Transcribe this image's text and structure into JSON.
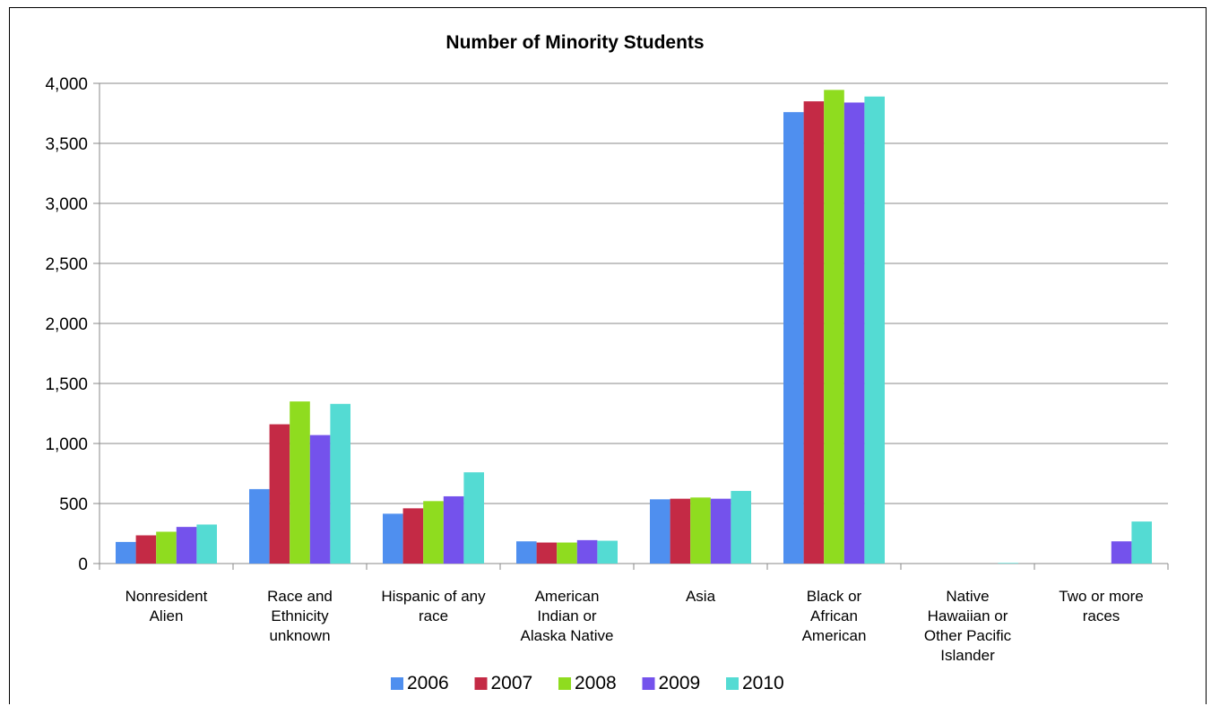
{
  "chart_data": {
    "type": "bar",
    "title": "Number of Minority Students",
    "xlabel": "",
    "ylabel": "",
    "ylim": [
      0,
      4000
    ],
    "yticks": [
      0,
      500,
      1000,
      1500,
      2000,
      2500,
      3000,
      3500,
      4000
    ],
    "ytick_labels": [
      "0",
      "500",
      "1,000",
      "1,500",
      "2,000",
      "2,500",
      "3,000",
      "3,500",
      "4,000"
    ],
    "grid": true,
    "legend_position": "bottom",
    "categories": [
      [
        "Nonresident",
        "Alien"
      ],
      [
        "Race and",
        "Ethnicity",
        "unknown"
      ],
      [
        "Hispanic of any",
        "race"
      ],
      [
        "American",
        "Indian or",
        "Alaska Native"
      ],
      [
        "Asia"
      ],
      [
        "Black or",
        "African",
        "American"
      ],
      [
        "Native",
        "Hawaiian or",
        "Other Pacific",
        "Islander"
      ],
      [
        "Two or more",
        "races"
      ]
    ],
    "series": [
      {
        "name": "2006",
        "color": "#4f8fef",
        "values": [
          180,
          620,
          415,
          185,
          535,
          3760,
          0,
          0
        ]
      },
      {
        "name": "2007",
        "color": "#c42a45",
        "values": [
          235,
          1160,
          460,
          175,
          540,
          3850,
          0,
          0
        ]
      },
      {
        "name": "2008",
        "color": "#8fdc1f",
        "values": [
          265,
          1350,
          520,
          175,
          550,
          3945,
          0,
          0
        ]
      },
      {
        "name": "2009",
        "color": "#7452ec",
        "values": [
          305,
          1070,
          560,
          195,
          540,
          3840,
          0,
          185
        ]
      },
      {
        "name": "2010",
        "color": "#54dbd3",
        "values": [
          325,
          1330,
          760,
          190,
          605,
          3890,
          5,
          350
        ]
      }
    ]
  }
}
